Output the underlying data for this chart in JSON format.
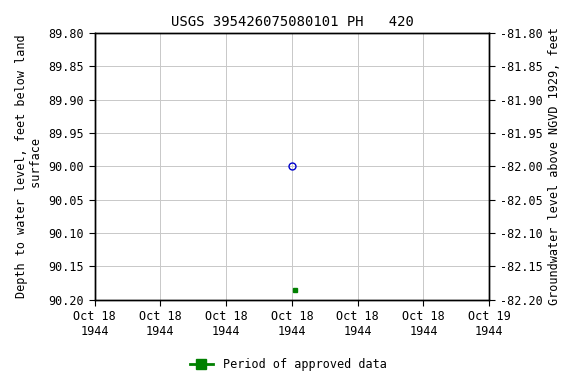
{
  "title": "USGS 395426075080101 PH   420",
  "ylabel_left": "Depth to water level, feet below land\n surface",
  "ylabel_right": "Groundwater level above NGVD 1929, feet",
  "ylim_left": [
    89.8,
    90.2
  ],
  "ylim_right": [
    -81.8,
    -82.2
  ],
  "yticks_left": [
    89.8,
    89.85,
    89.9,
    89.95,
    90.0,
    90.05,
    90.1,
    90.15,
    90.2
  ],
  "yticks_right": [
    -81.8,
    -81.85,
    -81.9,
    -81.95,
    -82.0,
    -82.05,
    -82.1,
    -82.15,
    -82.2
  ],
  "point_blue_x": 3.0,
  "point_blue_y": 90.0,
  "point_blue_color": "#0000cc",
  "point_green_x": 3.05,
  "point_green_y": 90.185,
  "point_green_color": "#008000",
  "xlim": [
    0,
    6
  ],
  "xtick_positions": [
    0,
    1,
    2,
    3,
    4,
    5,
    6
  ],
  "xtick_labels": [
    "Oct 18\n1944",
    "Oct 18\n1944",
    "Oct 18\n1944",
    "Oct 18\n1944",
    "Oct 18\n1944",
    "Oct 18\n1944",
    "Oct 19\n1944"
  ],
  "grid_color": "#c8c8c8",
  "legend_label": "Period of approved data",
  "legend_color": "#008000",
  "bg_color": "#ffffff",
  "title_fontsize": 10,
  "label_fontsize": 8.5,
  "tick_fontsize": 8.5
}
